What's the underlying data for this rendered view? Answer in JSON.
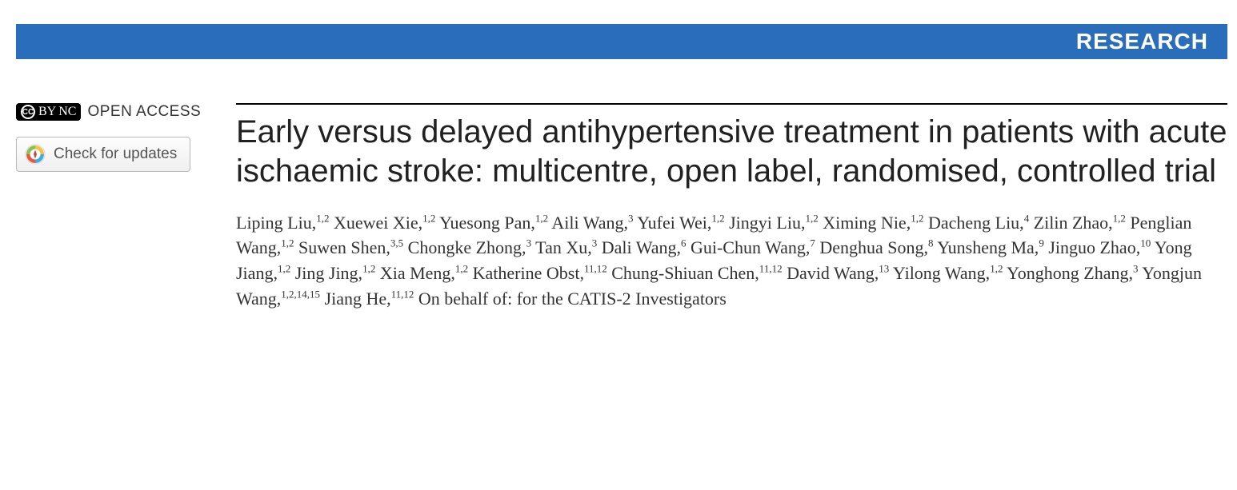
{
  "banner": {
    "label": "RESEARCH",
    "bg": "#2a6ebb",
    "fg": "#ffffff"
  },
  "left": {
    "open_access_label": "OPEN ACCESS",
    "updates_label": "Check for updates"
  },
  "article": {
    "title": "Early versus delayed antihypertensive treatment in patients with acute ischaemic stroke: multicentre, open label, randomised, controlled trial",
    "authors": [
      {
        "name": "Liping Liu",
        "aff": "1,2"
      },
      {
        "name": "Xuewei Xie",
        "aff": "1,2"
      },
      {
        "name": "Yuesong Pan",
        "aff": "1,2"
      },
      {
        "name": "Aili Wang",
        "aff": "3"
      },
      {
        "name": "Yufei Wei",
        "aff": "1,2"
      },
      {
        "name": "Jingyi Liu",
        "aff": "1,2"
      },
      {
        "name": "Ximing Nie",
        "aff": "1,2"
      },
      {
        "name": "Dacheng Liu",
        "aff": "4"
      },
      {
        "name": "Zilin Zhao",
        "aff": "1,2"
      },
      {
        "name": "Penglian Wang",
        "aff": "1,2"
      },
      {
        "name": "Suwen Shen",
        "aff": "3,5"
      },
      {
        "name": "Chongke Zhong",
        "aff": "3"
      },
      {
        "name": "Tan Xu",
        "aff": "3"
      },
      {
        "name": "Dali Wang",
        "aff": "6"
      },
      {
        "name": "Gui-Chun Wang",
        "aff": "7"
      },
      {
        "name": "Denghua Song",
        "aff": "8"
      },
      {
        "name": "Yunsheng Ma",
        "aff": "9"
      },
      {
        "name": "Jinguo Zhao",
        "aff": "10"
      },
      {
        "name": "Yong Jiang",
        "aff": "1,2"
      },
      {
        "name": "Jing Jing",
        "aff": "1,2"
      },
      {
        "name": "Xia Meng",
        "aff": "1,2"
      },
      {
        "name": "Katherine Obst",
        "aff": "11,12"
      },
      {
        "name": "Chung-Shiuan Chen",
        "aff": "11,12"
      },
      {
        "name": "David Wang",
        "aff": "13"
      },
      {
        "name": "Yilong Wang",
        "aff": "1,2"
      },
      {
        "name": "Yonghong Zhang",
        "aff": "3"
      },
      {
        "name": "Yongjun Wang",
        "aff": "1,2,14,15"
      },
      {
        "name": "Jiang He",
        "aff": "11,12"
      }
    ],
    "on_behalf": "On behalf of: for the CATIS-2 Investigators"
  },
  "colors": {
    "title": "#212121",
    "body": "#333333",
    "rule": "#000000",
    "button_border": "#b8b8b8"
  }
}
